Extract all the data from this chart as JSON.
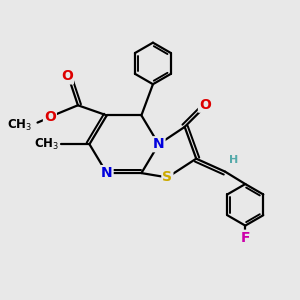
{
  "bg_color": "#e8e8e8",
  "bond_color": "#000000",
  "atom_colors": {
    "N": "#0000dd",
    "O": "#dd0000",
    "S": "#ccaa00",
    "F": "#cc00aa",
    "H": "#55aaaa",
    "C": "#000000"
  },
  "bond_width": 1.6,
  "font_size": 9,
  "title": ""
}
